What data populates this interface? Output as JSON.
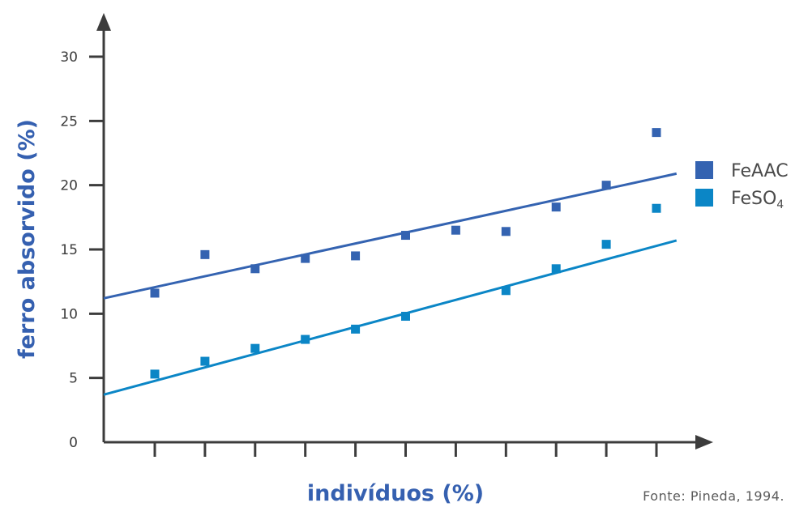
{
  "chart_data": {
    "type": "scatter",
    "xlabel": "indivíduos (%)",
    "ylabel": "ferro absorvido (%)",
    "ylim": [
      0,
      30
    ],
    "yticks": [
      0,
      5,
      10,
      15,
      20,
      25,
      30
    ],
    "xticks": [
      1,
      2,
      3,
      4,
      5,
      6,
      7,
      8,
      9,
      10,
      11
    ],
    "xlim": [
      0,
      11.6
    ],
    "grid": false,
    "legend_position": "right",
    "source": "Fonte: Pineda, 1994.",
    "series": [
      {
        "name": "FeAAC",
        "subscript": "",
        "color": "#3463b1",
        "x": [
          1,
          2,
          3,
          4,
          5,
          6,
          7,
          8,
          9,
          10,
          11
        ],
        "y": [
          11.6,
          14.6,
          13.5,
          14.3,
          14.5,
          16.1,
          16.5,
          16.4,
          18.3,
          20.0,
          24.1
        ],
        "trendline": {
          "x": [
            0,
            11.4
          ],
          "y": [
            11.2,
            20.9
          ]
        }
      },
      {
        "name": "FeSO",
        "subscript": "4",
        "color": "#0b86c6",
        "x": [
          1,
          2,
          3,
          4,
          5,
          6,
          8,
          9,
          10,
          11
        ],
        "y": [
          5.3,
          6.3,
          7.3,
          8.0,
          8.8,
          9.8,
          11.8,
          13.5,
          15.4,
          18.2
        ],
        "trendline": {
          "x": [
            0,
            11.4
          ],
          "y": [
            3.7,
            15.7
          ]
        }
      }
    ]
  },
  "colors": {
    "axis": "#3c3c3c",
    "title": "#3560b0"
  }
}
